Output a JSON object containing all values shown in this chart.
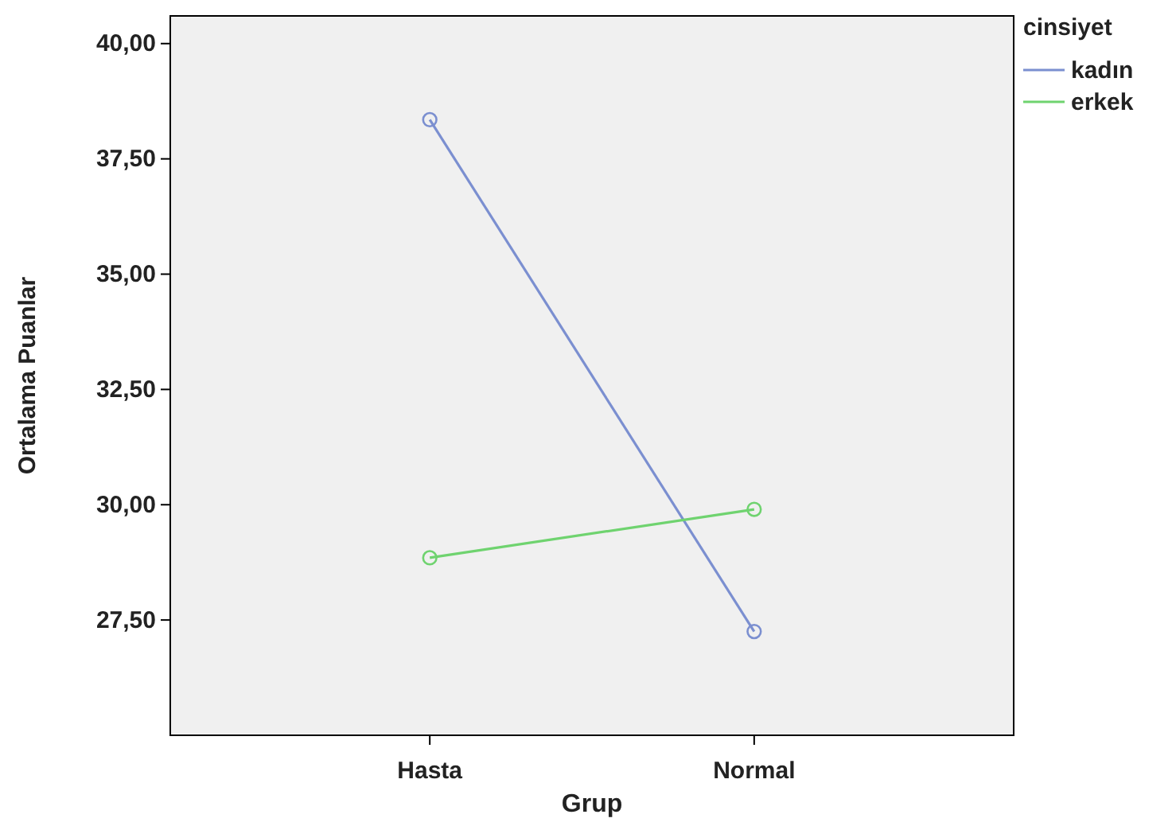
{
  "chart_data": {
    "type": "line",
    "xlabel": "Grup",
    "ylabel": "Ortalama Puanlar",
    "legend_title": "cinsiyet",
    "categories": [
      "Hasta",
      "Normal"
    ],
    "series": [
      {
        "name": "kadın",
        "color": "#7b8fd0",
        "values": [
          38.35,
          27.25
        ]
      },
      {
        "name": "erkek",
        "color": "#6fd36f",
        "values": [
          28.85,
          29.9
        ]
      }
    ],
    "ylim": [
      25,
      40.6
    ],
    "yticks": [
      {
        "value": 27.5,
        "label": "27,50"
      },
      {
        "value": 30,
        "label": "30,00"
      },
      {
        "value": 32.5,
        "label": "32,50"
      },
      {
        "value": 35,
        "label": "35,00"
      },
      {
        "value": 37.5,
        "label": "37,50"
      },
      {
        "value": 40,
        "label": "40,00"
      }
    ],
    "legend": "top right",
    "marker": "circle",
    "line_style": "solid",
    "grid": false
  }
}
